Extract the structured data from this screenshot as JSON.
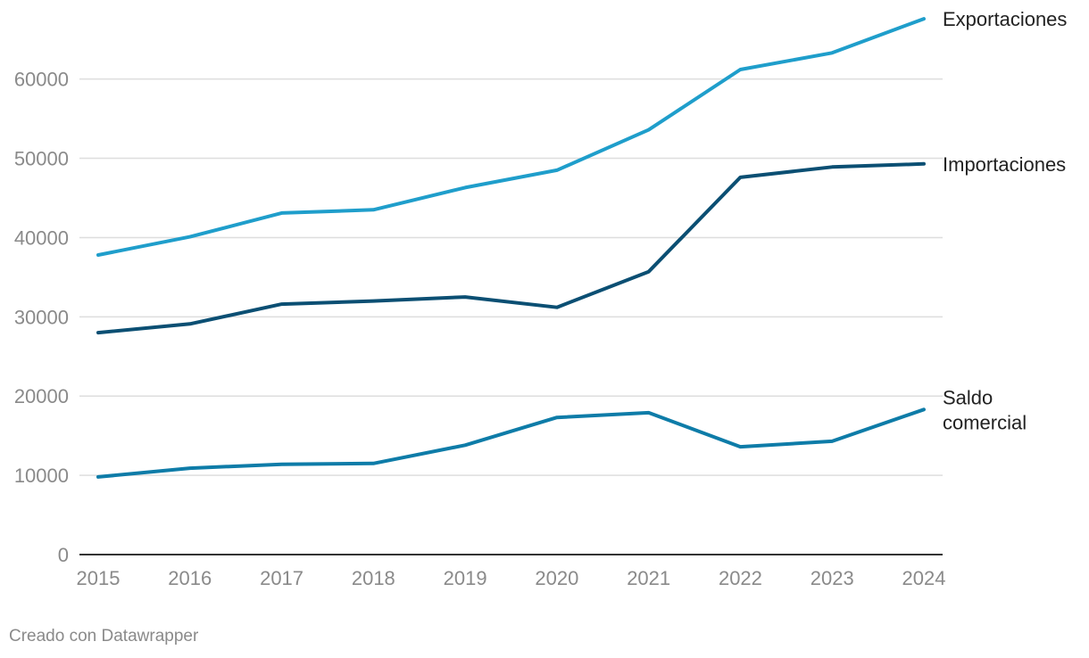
{
  "chart_data": {
    "type": "line",
    "title": "",
    "xlabel": "",
    "ylabel": "",
    "x": [
      "2015",
      "2016",
      "2017",
      "2018",
      "2019",
      "2020",
      "2021",
      "2022",
      "2023",
      "2024"
    ],
    "ylim": [
      0,
      67500
    ],
    "yticks": [
      0,
      10000,
      20000,
      30000,
      40000,
      50000,
      60000
    ],
    "ytick_labels": [
      "0",
      "10000",
      "20000",
      "30000",
      "40000",
      "50000",
      "60000"
    ],
    "grid": true,
    "series": [
      {
        "name": "Exportaciones",
        "label_lines": [
          "Exportaciones"
        ],
        "color": "#1f9ecb",
        "values": [
          37800,
          40100,
          43100,
          43500,
          46300,
          48500,
          53600,
          61200,
          63300,
          67600
        ]
      },
      {
        "name": "Importaciones",
        "label_lines": [
          "Importaciones"
        ],
        "color": "#0b4f73",
        "values": [
          28000,
          29100,
          31600,
          32000,
          32500,
          31200,
          35700,
          47600,
          48900,
          49300
        ]
      },
      {
        "name": "Saldo comercial",
        "label_lines": [
          "Saldo",
          "comercial"
        ],
        "color": "#0e7ca8",
        "values": [
          9800,
          10900,
          11400,
          11500,
          13800,
          17300,
          17900,
          13600,
          14300,
          18300
        ]
      }
    ]
  },
  "footer": {
    "credit": "Creado con Datawrapper"
  }
}
